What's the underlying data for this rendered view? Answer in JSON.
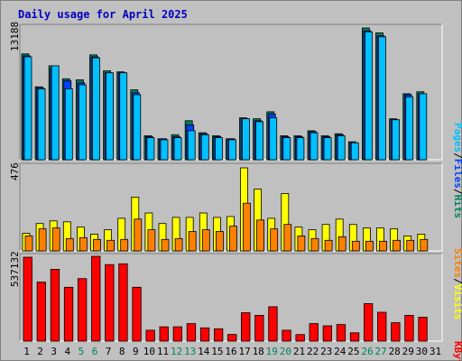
{
  "title": "Daily usage for April 2025",
  "colors": {
    "background": "#c0c0c0",
    "title": "#0000c0",
    "hits": "#00805c",
    "files": "#0040ff",
    "pages": "#00c0ff",
    "visits": "#ffff00",
    "sites": "#ff8000",
    "kbytes": "#ff0000",
    "weekday_label": "#000000",
    "weekend_label": "#00805c",
    "separator": "#000000"
  },
  "labels": {
    "pages": "Pages",
    "files": "Files",
    "hits": "Hits",
    "sites": "Sites",
    "visits": "Visits",
    "kbytes": "KBytes",
    "slash": "/",
    "hits_max": "13188",
    "visits_max": "476",
    "kbytes_max": "537132"
  },
  "chart_data": [
    {
      "type": "bar",
      "panel": "hits-files-pages",
      "ylim": [
        0,
        13188
      ],
      "x": [
        1,
        2,
        3,
        4,
        5,
        6,
        7,
        8,
        9,
        10,
        11,
        12,
        13,
        14,
        15,
        16,
        17,
        18,
        19,
        20,
        21,
        22,
        23,
        24,
        25,
        26,
        27,
        28,
        29,
        30,
        31
      ],
      "weekend_days": [
        5,
        6,
        12,
        13,
        19,
        20,
        26,
        27
      ],
      "series": [
        {
          "name": "Hits",
          "values": [
            10600,
            7300,
            9400,
            8100,
            8000,
            10500,
            8900,
            8800,
            7000,
            2400,
            2100,
            2500,
            3900,
            2700,
            2400,
            2100,
            4200,
            4100,
            4800,
            2400,
            2400,
            2900,
            2400,
            2600,
            1800,
            13188,
            12700,
            4100,
            6600,
            6800,
            null
          ]
        },
        {
          "name": "Files",
          "values": [
            10400,
            7200,
            9100,
            7900,
            7700,
            10300,
            8700,
            8700,
            6700,
            2300,
            2100,
            2300,
            3500,
            2600,
            2300,
            2100,
            4100,
            3900,
            4600,
            2300,
            2300,
            2800,
            2300,
            2500,
            1700,
            12900,
            12400,
            4000,
            6500,
            6600,
            null
          ]
        },
        {
          "name": "Pages",
          "values": [
            10300,
            7100,
            9400,
            7100,
            7500,
            10200,
            8700,
            8700,
            6500,
            2200,
            2000,
            2200,
            2900,
            2500,
            2200,
            2000,
            4100,
            3800,
            4200,
            2200,
            2200,
            2700,
            2200,
            2400,
            1700,
            12800,
            12300,
            4000,
            6300,
            6600,
            null
          ]
        }
      ]
    },
    {
      "type": "bar",
      "panel": "visits-sites",
      "ylim": [
        0,
        476
      ],
      "x": [
        1,
        2,
        3,
        4,
        5,
        6,
        7,
        8,
        9,
        10,
        11,
        12,
        13,
        14,
        15,
        16,
        17,
        18,
        19,
        20,
        21,
        22,
        23,
        24,
        25,
        26,
        27,
        28,
        29,
        30,
        31
      ],
      "series": [
        {
          "name": "Visits",
          "values": [
            100,
            155,
            170,
            165,
            135,
            95,
            120,
            185,
            305,
            215,
            155,
            190,
            190,
            215,
            190,
            195,
            471,
            350,
            185,
            325,
            135,
            120,
            150,
            180,
            150,
            130,
            130,
            125,
            85,
            95,
            null
          ]
        },
        {
          "name": "Sites",
          "values": [
            85,
            125,
            130,
            70,
            75,
            65,
            60,
            65,
            180,
            120,
            65,
            70,
            110,
            120,
            110,
            140,
            270,
            175,
            125,
            150,
            85,
            70,
            60,
            80,
            55,
            55,
            55,
            60,
            60,
            65,
            null
          ]
        }
      ]
    },
    {
      "type": "bar",
      "panel": "kbytes",
      "ylim": [
        0,
        537132
      ],
      "x": [
        1,
        2,
        3,
        4,
        5,
        6,
        7,
        8,
        9,
        10,
        11,
        12,
        13,
        14,
        15,
        16,
        17,
        18,
        19,
        20,
        21,
        22,
        23,
        24,
        25,
        26,
        27,
        28,
        29,
        30,
        31
      ],
      "series": [
        {
          "name": "KBytes",
          "values": [
            537132,
            378000,
            460000,
            345000,
            400000,
            543000,
            490000,
            495000,
            345000,
            70000,
            92000,
            92000,
            112000,
            85000,
            79000,
            43000,
            182000,
            165000,
            220000,
            70000,
            42000,
            112000,
            98000,
            106000,
            53000,
            240000,
            185000,
            118000,
            165000,
            153000,
            null
          ]
        }
      ]
    }
  ],
  "x_labels": [
    "1",
    "2",
    "3",
    "4",
    "5",
    "6",
    "7",
    "8",
    "9",
    "10",
    "11",
    "12",
    "13",
    "14",
    "15",
    "16",
    "17",
    "18",
    "19",
    "20",
    "21",
    "22",
    "23",
    "24",
    "25",
    "26",
    "27",
    "28",
    "29",
    "30",
    "31"
  ]
}
